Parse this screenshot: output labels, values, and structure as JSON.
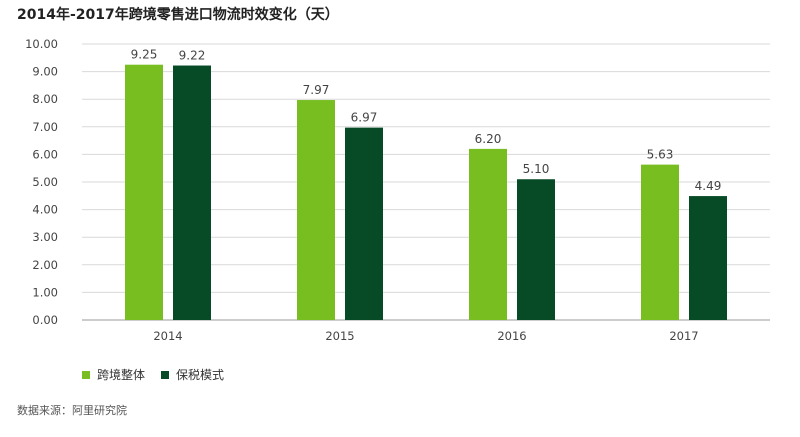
{
  "title": "2014年-2017年跨境零售进口物流时效变化（天）",
  "source": "数据来源：阿里研究院",
  "colors": {
    "series1": "#78be20",
    "series2": "#064a26",
    "grid": "#d9d9d9",
    "axis": "#9a9a9a"
  },
  "chart_data": {
    "type": "bar",
    "title": "2014年-2017年跨境零售进口物流时效变化（天）",
    "categories": [
      "2014",
      "2015",
      "2016",
      "2017"
    ],
    "series": [
      {
        "name": "跨境整体",
        "values": [
          9.25,
          7.97,
          6.2,
          5.63
        ],
        "labels": [
          "9.25",
          "7.97",
          "6.20",
          "5.63"
        ]
      },
      {
        "name": "保税模式",
        "values": [
          9.22,
          6.97,
          5.1,
          4.49
        ],
        "labels": [
          "9.22",
          "6.97",
          "5.10",
          "4.49"
        ]
      }
    ],
    "yticks": [
      "0.00",
      "1.00",
      "2.00",
      "3.00",
      "4.00",
      "5.00",
      "6.00",
      "7.00",
      "8.00",
      "9.00",
      "10.00"
    ],
    "ylim": [
      0,
      10
    ],
    "grid": true,
    "legend_position": "bottom-left"
  }
}
